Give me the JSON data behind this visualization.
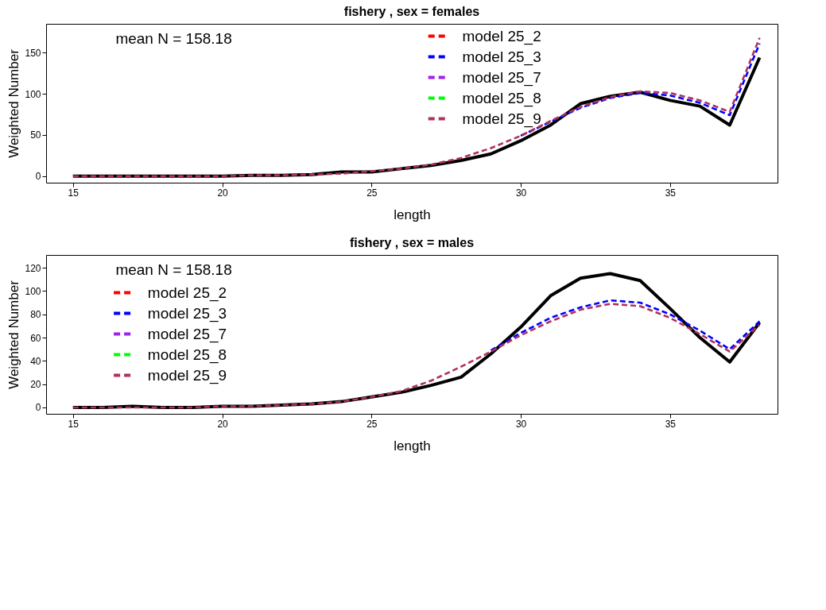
{
  "chart_data": [
    {
      "type": "line",
      "title": "fishery , sex =  females",
      "xlabel": "length",
      "ylabel": "Weighted Number",
      "annotations": [
        "mean N =  158.18"
      ],
      "legend": "top right",
      "grid": false,
      "marker": "none",
      "xlim": [
        14.1,
        38.6
      ],
      "xticks": [
        15,
        20,
        25,
        30,
        35
      ],
      "ylim": [
        -8,
        185
      ],
      "yticks": [
        0,
        50,
        100,
        150
      ],
      "x": [
        15,
        16,
        17,
        18,
        19,
        20,
        21,
        22,
        23,
        24,
        25,
        26,
        27,
        28,
        29,
        30,
        31,
        32,
        33,
        34,
        35,
        36,
        37,
        38
      ],
      "series": [
        {
          "color": "#000000",
          "line_style": "solid",
          "values": [
            0,
            0,
            0,
            0,
            0,
            0,
            1,
            1,
            2,
            5,
            5,
            9,
            13,
            19,
            27,
            43,
            62,
            88,
            97,
            102,
            92,
            85,
            62,
            144
          ]
        },
        {
          "name": "model 25_2",
          "color": "#ff0000",
          "line_style": "dashed",
          "values": [
            null,
            null,
            null,
            null,
            null,
            null,
            null,
            null,
            null,
            null,
            null,
            null,
            null,
            null,
            null,
            null,
            null,
            null,
            null,
            null,
            null,
            null,
            null,
            null
          ]
        },
        {
          "name": "model 25_3",
          "color": "#0000ff",
          "line_style": "dashed",
          "values": [
            null,
            null,
            null,
            null,
            null,
            null,
            null,
            null,
            null,
            null,
            null,
            null,
            null,
            null,
            null,
            49,
            66,
            83,
            95,
            101,
            98,
            89,
            74,
            161
          ]
        },
        {
          "name": "model 25_7",
          "color": "#a020f0",
          "line_style": "dashed",
          "values": [
            null,
            null,
            null,
            null,
            null,
            null,
            null,
            null,
            null,
            null,
            null,
            null,
            null,
            null,
            null,
            null,
            null,
            null,
            null,
            null,
            null,
            null,
            null,
            null
          ]
        },
        {
          "name": "model 25_8",
          "color": "#00ff00",
          "line_style": "dashed",
          "values": [
            null,
            null,
            null,
            null,
            null,
            null,
            null,
            null,
            null,
            null,
            null,
            null,
            null,
            null,
            null,
            null,
            null,
            null,
            null,
            null,
            null,
            null,
            null,
            null
          ]
        },
        {
          "name": "model 25_9",
          "color": "#b03060",
          "line_style": "dashed",
          "values": [
            0,
            0,
            0,
            0,
            0,
            0,
            1,
            1,
            2,
            3,
            6,
            9,
            14,
            22,
            34,
            49,
            67,
            84,
            96,
            103,
            101,
            92,
            78,
            168
          ]
        }
      ]
    },
    {
      "type": "line",
      "title": "fishery , sex =  males",
      "xlabel": "length",
      "ylabel": "Weighted Number",
      "annotations": [
        "mean N =  158.18"
      ],
      "legend": "left",
      "grid": false,
      "marker": "none",
      "xlim": [
        14.1,
        38.6
      ],
      "xticks": [
        15,
        20,
        25,
        30,
        35
      ],
      "ylim": [
        -5.5,
        131
      ],
      "yticks": [
        0,
        20,
        40,
        60,
        80,
        100,
        120
      ],
      "x": [
        15,
        16,
        17,
        18,
        19,
        20,
        21,
        22,
        23,
        24,
        25,
        26,
        27,
        28,
        29,
        30,
        31,
        32,
        33,
        34,
        35,
        36,
        37,
        38
      ],
      "series": [
        {
          "color": "#000000",
          "line_style": "solid",
          "values": [
            0,
            0,
            1,
            0,
            0,
            1,
            1,
            2,
            3,
            5,
            9,
            13,
            19,
            26,
            46,
            69,
            96,
            111,
            115,
            109,
            85,
            60,
            39,
            73
          ]
        },
        {
          "name": "model 25_2",
          "color": "#ff0000",
          "line_style": "dashed",
          "values": [
            null,
            null,
            null,
            null,
            null,
            null,
            null,
            null,
            null,
            null,
            null,
            null,
            null,
            null,
            null,
            null,
            null,
            null,
            null,
            null,
            null,
            null,
            null,
            null
          ]
        },
        {
          "name": "model 25_3",
          "color": "#0000ff",
          "line_style": "dashed",
          "values": [
            null,
            null,
            null,
            null,
            null,
            null,
            null,
            null,
            null,
            null,
            null,
            null,
            null,
            null,
            49,
            64,
            77,
            86,
            92,
            90,
            80,
            66,
            50,
            74
          ]
        },
        {
          "name": "model 25_7",
          "color": "#a020f0",
          "line_style": "dashed",
          "values": [
            null,
            null,
            null,
            null,
            null,
            null,
            null,
            null,
            null,
            null,
            null,
            null,
            null,
            null,
            null,
            null,
            null,
            null,
            null,
            null,
            null,
            null,
            null,
            null
          ]
        },
        {
          "name": "model 25_8",
          "color": "#00ff00",
          "line_style": "dashed",
          "values": [
            null,
            null,
            null,
            null,
            null,
            null,
            null,
            null,
            null,
            null,
            null,
            null,
            null,
            null,
            null,
            null,
            null,
            null,
            null,
            null,
            null,
            null,
            null,
            null
          ]
        },
        {
          "name": "model 25_9",
          "color": "#b03060",
          "line_style": "dashed",
          "values": [
            0,
            0,
            0,
            0,
            0,
            1,
            1,
            2,
            3,
            5,
            9,
            14,
            23,
            35,
            48,
            62,
            74,
            84,
            89,
            87,
            77,
            63,
            48,
            71
          ]
        }
      ]
    }
  ]
}
